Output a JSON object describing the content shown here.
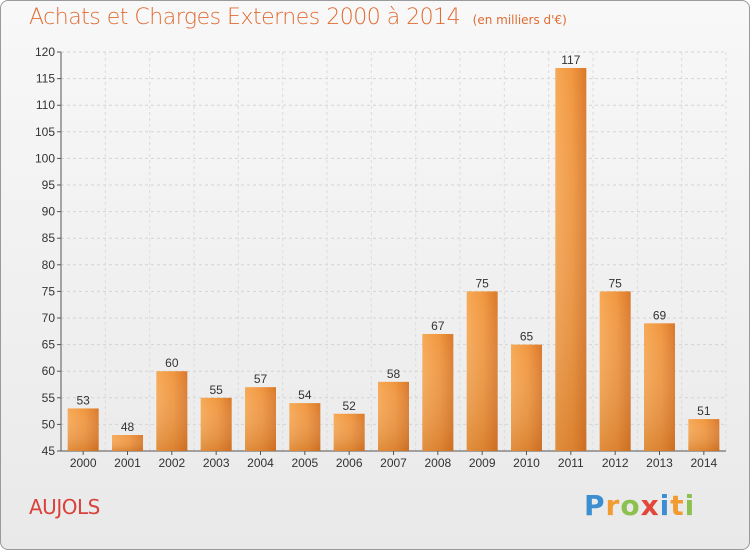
{
  "chart_data": {
    "type": "bar",
    "title": "Achats et Charges Externes 2000 à 2014",
    "unit": "(en milliers d'€)",
    "categories": [
      "2000",
      "2001",
      "2002",
      "2003",
      "2004",
      "2005",
      "2006",
      "2007",
      "2008",
      "2009",
      "2010",
      "2011",
      "2012",
      "2013",
      "2014"
    ],
    "values": [
      53,
      48,
      60,
      55,
      57,
      54,
      52,
      58,
      67,
      75,
      65,
      117,
      75,
      69,
      51
    ],
    "xlabel": "",
    "ylabel": "",
    "ylim": [
      45,
      120
    ],
    "yticks": [
      45,
      50,
      55,
      60,
      65,
      70,
      75,
      80,
      85,
      90,
      95,
      100,
      105,
      110,
      115,
      120
    ],
    "grid": true,
    "data_labels": true,
    "bar_color": "#f0963f"
  },
  "footer": {
    "commune": "AUJOLS",
    "brand_letters": [
      {
        "char": "P",
        "color": "#3b8ed1"
      },
      {
        "char": "r",
        "color": "#f29b33"
      },
      {
        "char": "o",
        "color": "#8cc04f"
      },
      {
        "char": "x",
        "color": "#e2473b"
      },
      {
        "char": "i",
        "color": "#3b8ed1"
      },
      {
        "char": "t",
        "color": "#f29b33"
      },
      {
        "char": "i",
        "color": "#8cc04f"
      }
    ]
  }
}
